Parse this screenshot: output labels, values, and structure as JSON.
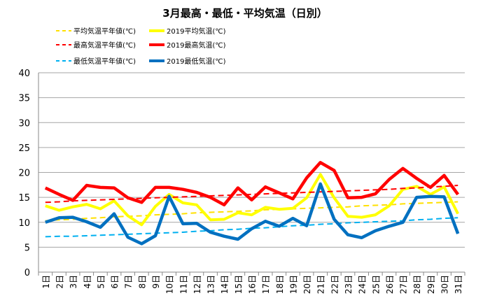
{
  "chart_data": {
    "type": "line",
    "title": "3月最高・最低・平均気温（日別）",
    "xlabel": "",
    "ylabel": "",
    "ylim": [
      0,
      40
    ],
    "yticks": [
      0,
      5,
      10,
      15,
      20,
      25,
      30,
      35,
      40
    ],
    "grid": true,
    "legend_position": "top",
    "categories": [
      "1日",
      "2日",
      "3日",
      "4日",
      "5日",
      "6日",
      "7日",
      "8日",
      "9日",
      "10日",
      "11日",
      "12日",
      "13日",
      "14日",
      "15日",
      "16日",
      "17日",
      "18日",
      "19日",
      "20日",
      "21日",
      "22日",
      "23日",
      "24日",
      "25日",
      "26日",
      "27日",
      "28日",
      "29日",
      "30日",
      "31日"
    ],
    "series": [
      {
        "name": "平均気温平年値(℃)",
        "color": "#FFE000",
        "style": "dashed",
        "width": 2,
        "values": [
          10.3,
          10.5,
          10.6,
          10.8,
          10.9,
          11.1,
          11.2,
          11.3,
          11.5,
          11.6,
          11.7,
          11.9,
          12.0,
          12.1,
          12.2,
          12.3,
          12.5,
          12.6,
          12.7,
          12.8,
          12.9,
          13.0,
          13.1,
          13.3,
          13.4,
          13.5,
          13.7,
          13.8,
          13.9,
          14.0,
          14.1
        ]
      },
      {
        "name": "2019平均気温(℃)",
        "color": "#FFFF00",
        "style": "solid",
        "width": 4,
        "values": [
          13.3,
          12.4,
          13.1,
          13.6,
          12.7,
          14.3,
          11.3,
          9.5,
          13.2,
          15.6,
          13.9,
          13.5,
          10.5,
          10.6,
          11.9,
          11.5,
          13.0,
          12.6,
          12.8,
          14.9,
          19.6,
          14.9,
          11.2,
          11.0,
          11.5,
          13.3,
          16.6,
          17.2,
          15.6,
          17.1,
          11.7
        ]
      },
      {
        "name": "最高気温平年値(℃)",
        "color": "#FF0000",
        "style": "dashed",
        "width": 2,
        "values": [
          14.0,
          14.1,
          14.3,
          14.4,
          14.5,
          14.6,
          14.7,
          14.8,
          14.9,
          15.0,
          15.1,
          15.2,
          15.3,
          15.4,
          15.5,
          15.6,
          15.7,
          15.8,
          15.9,
          16.0,
          16.1,
          16.2,
          16.3,
          16.4,
          16.5,
          16.6,
          16.8,
          16.9,
          17.1,
          17.2,
          17.4
        ]
      },
      {
        "name": "2019最高気温(℃)",
        "color": "#FF0000",
        "style": "solid",
        "width": 4.5,
        "values": [
          16.9,
          15.6,
          14.4,
          17.4,
          17.0,
          16.9,
          14.9,
          14.0,
          17.0,
          17.0,
          16.6,
          16.0,
          15.0,
          13.5,
          16.9,
          14.5,
          17.1,
          15.9,
          14.7,
          18.9,
          22.0,
          20.4,
          14.9,
          15.0,
          15.7,
          18.6,
          20.8,
          18.8,
          17.0,
          19.4,
          15.6
        ]
      },
      {
        "name": "最低気温平年値(℃)",
        "color": "#00B0F0",
        "style": "dashed",
        "width": 2,
        "values": [
          7.1,
          7.2,
          7.2,
          7.3,
          7.4,
          7.5,
          7.6,
          7.7,
          7.8,
          7.9,
          8.0,
          8.2,
          8.3,
          8.5,
          8.6,
          8.8,
          8.9,
          9.1,
          9.3,
          9.4,
          9.6,
          9.7,
          9.9,
          10.0,
          10.1,
          10.2,
          10.3,
          10.5,
          10.6,
          10.8,
          10.9
        ]
      },
      {
        "name": "2019最低気温(℃)",
        "color": "#0070C0",
        "style": "solid",
        "width": 4.5,
        "values": [
          10.0,
          10.9,
          11.0,
          10.1,
          9.0,
          11.7,
          7.0,
          5.7,
          7.3,
          15.2,
          9.7,
          9.8,
          8.0,
          7.2,
          6.6,
          8.7,
          10.2,
          9.2,
          10.8,
          9.3,
          17.7,
          10.6,
          7.5,
          6.9,
          8.3,
          9.2,
          10.0,
          15.0,
          15.2,
          15.1,
          7.7
        ]
      }
    ]
  }
}
